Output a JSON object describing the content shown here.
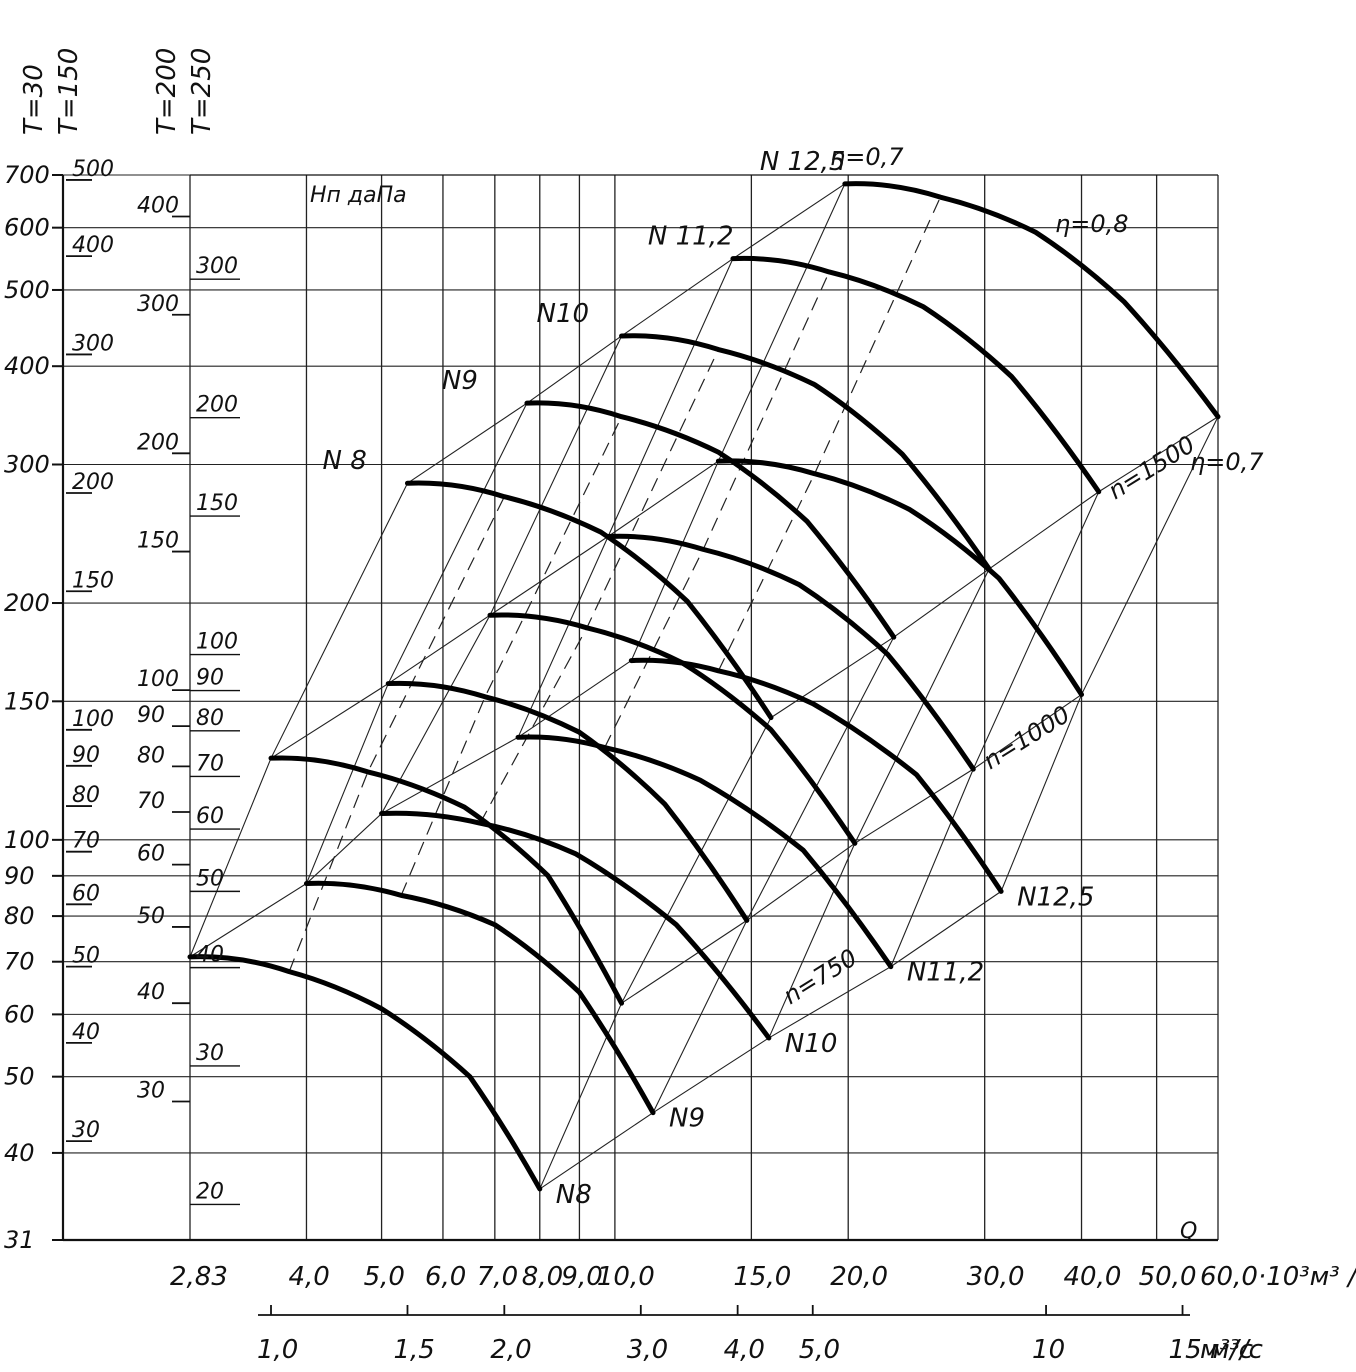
{
  "chart_data": {
    "type": "line",
    "title": "",
    "xlabel": "Q",
    "x_units": "·10³м³/ч",
    "x2_units": "м³/с",
    "ylabel": "Нп даПа",
    "x_scale": "log",
    "y_scale": "log",
    "x_ticks": [
      2.83,
      4.0,
      5.0,
      6.0,
      7.0,
      8.0,
      9.0,
      10.0,
      15.0,
      20.0,
      30.0,
      40.0,
      50.0,
      60.0
    ],
    "x_tick_labels": [
      "2,83",
      "4,0",
      "5,0",
      "6,0",
      "7,0",
      "8,0",
      "9,0",
      "10,0",
      "15,0",
      "20,0",
      "30,0",
      "40,0",
      "50,0",
      "60,0·10³м³ /ч"
    ],
    "x2_ticks": [
      1.0,
      1.5,
      2.0,
      3.0,
      4.0,
      5.0,
      10,
      15
    ],
    "x2_tick_labels": [
      "1,0",
      "1,5",
      "2,0",
      "3,0",
      "4,0",
      "5,0",
      "10",
      "15 м³/с"
    ],
    "main_y_ticks": [
      31,
      40,
      50,
      60,
      70,
      80,
      90,
      100,
      150,
      200,
      300,
      400,
      500,
      600,
      700
    ],
    "main_y_tick_labels": [
      "31",
      "40",
      "50",
      "60",
      "70",
      "80",
      "90",
      "100",
      "150",
      "200",
      "300",
      "400",
      "500",
      "600",
      "700"
    ],
    "temperature_scales": [
      {
        "header": "T=30",
        "ticks": [
          31,
          40,
          50,
          60,
          70,
          80,
          90,
          100,
          150,
          200,
          300,
          400,
          500,
          600,
          700
        ]
      },
      {
        "header": "T=150",
        "ticks": [
          30,
          40,
          50,
          60,
          70,
          80,
          90,
          100,
          150,
          200,
          300,
          400,
          500
        ],
        "labels": [
          "30",
          "40",
          "50",
          "60",
          "70",
          "80",
          "90",
          "100",
          "150",
          "200",
          "300",
          "400",
          "500"
        ]
      },
      {
        "header": "T=200",
        "ticks": [
          30,
          40,
          50,
          60,
          70,
          80,
          90,
          100,
          150,
          200,
          300,
          400
        ],
        "labels": [
          "30",
          "40",
          "50",
          "60",
          "70",
          "80",
          "90",
          "100",
          "150",
          "200",
          "300",
          "400"
        ]
      },
      {
        "header": "T=250",
        "ticks": [
          20,
          30,
          40,
          50,
          60,
          70,
          80,
          90,
          100,
          150,
          200,
          300
        ],
        "labels": [
          "20",
          "30",
          "40",
          "50",
          "60",
          "70",
          "80",
          "90",
          "100",
          "150",
          "200",
          "300"
        ]
      }
    ],
    "fan_sizes": [
      "N8",
      "N9",
      "N10",
      "N11,2",
      "N12,5"
    ],
    "fan_labels_top": [
      "N 8",
      "N9",
      "N10",
      "N 11,2",
      "N 12,5"
    ],
    "fan_labels_bottom": [
      "N8",
      "N9",
      "N10",
      "N11,2",
      "N12,5"
    ],
    "speed_labels": [
      "n=750",
      "n=1000",
      "n=1500"
    ],
    "efficiency_labels": [
      "η=0,7",
      "η=0,8",
      "η=0,7"
    ],
    "series": [
      {
        "name": "N8",
        "speed": 750,
        "x": [
          2.83,
          3.8,
          5.0,
          6.5,
          8.0
        ],
        "y": [
          71,
          68,
          61,
          50,
          36
        ]
      },
      {
        "name": "N9",
        "speed": 750,
        "x": [
          4.0,
          5.3,
          7.0,
          9.0,
          11.2
        ],
        "y": [
          88,
          85,
          78,
          64,
          45
        ]
      },
      {
        "name": "N10",
        "speed": 750,
        "x": [
          5.0,
          6.7,
          8.9,
          12.0,
          15.8
        ],
        "y": [
          108,
          105,
          96,
          78,
          56
        ]
      },
      {
        "name": "N11,2",
        "speed": 750,
        "x": [
          7.5,
          9.7,
          12.9,
          17.5,
          22.7
        ],
        "y": [
          135,
          131,
          119,
          97,
          69
        ]
      },
      {
        "name": "N12,5",
        "speed": 750,
        "x": [
          10.5,
          13.6,
          18.0,
          24.5,
          31.5
        ],
        "y": [
          169,
          164,
          149,
          121,
          86
        ]
      },
      {
        "name": "N8",
        "speed": 1000,
        "x": [
          3.6,
          4.8,
          6.4,
          8.2,
          10.2
        ],
        "y": [
          127,
          122,
          110,
          90,
          62
        ]
      },
      {
        "name": "N9",
        "speed": 1000,
        "x": [
          5.1,
          6.8,
          9.0,
          11.6,
          14.8
        ],
        "y": [
          158,
          152,
          137,
          111,
          79
        ]
      },
      {
        "name": "N10",
        "speed": 1000,
        "x": [
          6.9,
          9.2,
          12.2,
          15.9,
          20.4
        ],
        "y": [
          193,
          186,
          168,
          138,
          99
        ]
      },
      {
        "name": "N11,2",
        "speed": 1000,
        "x": [
          9.8,
          13.0,
          17.3,
          22.5,
          29.0
        ],
        "y": [
          243,
          234,
          211,
          172,
          123
        ]
      },
      {
        "name": "N12,5",
        "speed": 1000,
        "x": [
          13.6,
          18.1,
          24.0,
          31.3,
          40.0
        ],
        "y": [
          303,
          292,
          263,
          215,
          153
        ]
      },
      {
        "name": "N8",
        "speed": 1500,
        "x": [
          5.4,
          7.2,
          9.6,
          12.4,
          15.9
        ],
        "y": [
          284,
          273,
          246,
          201,
          143
        ]
      },
      {
        "name": "N9",
        "speed": 1500,
        "x": [
          7.7,
          10.2,
          13.6,
          17.7,
          22.9
        ],
        "y": [
          359,
          345,
          311,
          254,
          181
        ]
      },
      {
        "name": "N10",
        "speed": 1500,
        "x": [
          10.2,
          13.6,
          18.1,
          23.5,
          30.4
        ],
        "y": [
          437,
          420,
          379,
          309,
          221
        ]
      },
      {
        "name": "N11,2",
        "speed": 1500,
        "x": [
          14.2,
          18.9,
          25.0,
          32.5,
          42.1
        ],
        "y": [
          548,
          527,
          476,
          388,
          277
        ]
      },
      {
        "name": "N12,5",
        "speed": 1500,
        "x": [
          19.8,
          26.3,
          34.9,
          45.4,
          60.0
        ],
        "y": [
          682,
          656,
          592,
          483,
          345
        ]
      }
    ],
    "grid": true,
    "legend": "none"
  }
}
